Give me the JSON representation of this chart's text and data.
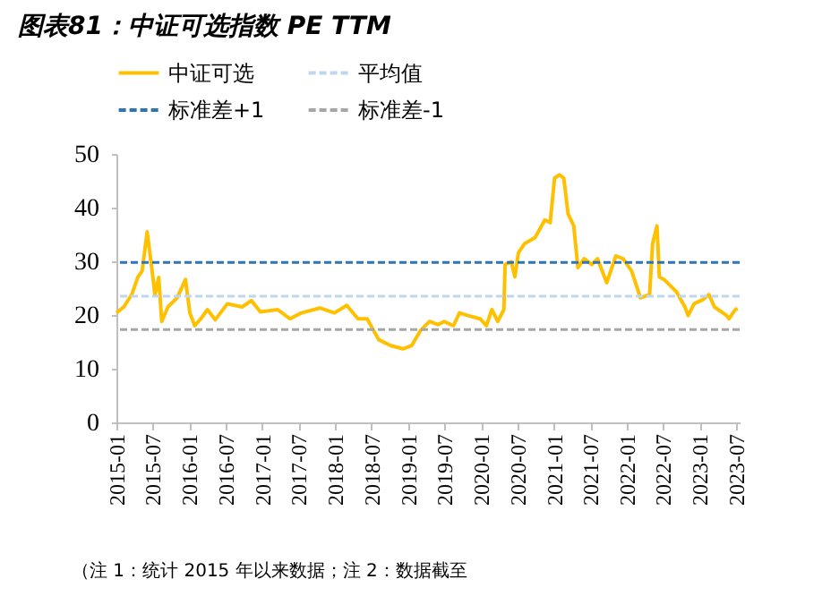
{
  "chart_data": {
    "type": "line",
    "title": "图表81：中证可选指数 PE TTM",
    "annotations": [
      "（注 1：统计 2015 年以来数据；注 2：数据截至"
    ],
    "x": [
      "2015-01-01",
      "2015-02-07",
      "2015-03-19",
      "2015-04-19",
      "2015-05-10",
      "2015-06-04",
      "2015-06-25",
      "2015-07-13",
      "2015-08-01",
      "2015-08-16",
      "2015-09-16",
      "2015-11-01",
      "2015-12-13",
      "2016-01-04",
      "2016-01-28",
      "2016-02-28",
      "2016-04-01",
      "2016-05-10",
      "2016-07-10",
      "2016-09-22",
      "2016-11-07",
      "2016-12-22",
      "2017-03-19",
      "2017-05-19",
      "2017-07-16",
      "2017-10-16",
      "2017-12-28",
      "2018-02-28",
      "2018-04-25",
      "2018-06-10",
      "2018-08-07",
      "2018-10-07",
      "2018-12-07",
      "2019-01-19",
      "2019-03-04",
      "2019-04-19",
      "2019-06-01",
      "2019-07-01",
      "2019-08-16",
      "2019-09-16",
      "2019-10-28",
      "2019-12-28",
      "2020-01-28",
      "2020-02-25",
      "2020-03-25",
      "2020-04-25",
      "2020-05-01",
      "2020-06-01",
      "2020-06-19",
      "2020-07-07",
      "2020-08-07",
      "2020-09-28",
      "2020-11-16",
      "2020-12-13",
      "2021-01-04",
      "2021-01-28",
      "2021-02-19",
      "2021-03-13",
      "2021-04-10",
      "2021-05-01",
      "2021-06-01",
      "2021-07-10",
      "2021-08-07",
      "2021-09-22",
      "2021-11-07",
      "2021-12-13",
      "2022-01-25",
      "2022-03-10",
      "2022-04-25",
      "2022-05-10",
      "2022-06-01",
      "2022-06-13",
      "2022-07-07",
      "2022-09-07",
      "2022-10-19",
      "2022-11-04",
      "2022-12-04",
      "2023-01-19",
      "2023-02-16",
      "2023-03-16",
      "2023-05-16",
      "2023-05-28",
      "2023-06-28",
      "2023-07-10"
    ],
    "series": [
      {
        "name": "中证可选",
        "color": "#ffc000",
        "values": [
          20.4,
          21.5,
          23.8,
          27.1,
          28.2,
          35.5,
          29.4,
          23.8,
          27,
          18.8,
          21.5,
          23.2,
          26.6,
          20.4,
          18,
          19.3,
          21,
          19.1,
          22.1,
          21.5,
          22.7,
          20.6,
          21,
          19.3,
          20.4,
          21.3,
          20.4,
          21.8,
          19.3,
          19.3,
          15.4,
          14.3,
          13.7,
          14.3,
          17.1,
          18.8,
          18.2,
          18.8,
          18,
          20.4,
          19.9,
          19.3,
          18,
          21,
          18.8,
          21,
          29.4,
          29.9,
          27.1,
          31.6,
          33.3,
          34.4,
          37.7,
          37.2,
          45.5,
          46.1,
          45.5,
          38.8,
          36.6,
          28.8,
          30.5,
          29.4,
          30.5,
          26,
          31,
          30.5,
          28.2,
          23.2,
          23.8,
          33.3,
          36.6,
          27.1,
          26.6,
          24.3,
          21.5,
          19.9,
          22.1,
          22.9,
          23.8,
          21.5,
          19.9,
          19.3,
          21,
          21.2
        ]
      }
    ],
    "ref_lines": [
      {
        "axis": "y",
        "value": 23.5,
        "label": "平均值",
        "color": "#bdd7ee",
        "line_style": "dashed"
      },
      {
        "axis": "y",
        "value": 29.8,
        "label": "标准差+1",
        "color": "#2e75b6",
        "line_style": "dashed"
      },
      {
        "axis": "y",
        "value": 17.3,
        "label": "标准差-1",
        "color": "#a6a6a6",
        "line_style": "dashed"
      }
    ],
    "xlim": [
      "2015-01-01",
      "2023-07-20"
    ],
    "xticks": [
      "2015-01",
      "2015-07",
      "2016-01",
      "2016-07",
      "2017-01",
      "2017-07",
      "2018-01",
      "2018-07",
      "2019-01",
      "2019-07",
      "2020-01",
      "2020-07",
      "2021-01",
      "2021-07",
      "2022-01",
      "2022-07",
      "2023-01",
      "2023-07"
    ],
    "ylim": [
      0,
      50
    ],
    "yticks": [
      0,
      10,
      20,
      30,
      40,
      50
    ],
    "grid": false,
    "legend": "top",
    "marker": "none",
    "line_style": "solid"
  }
}
